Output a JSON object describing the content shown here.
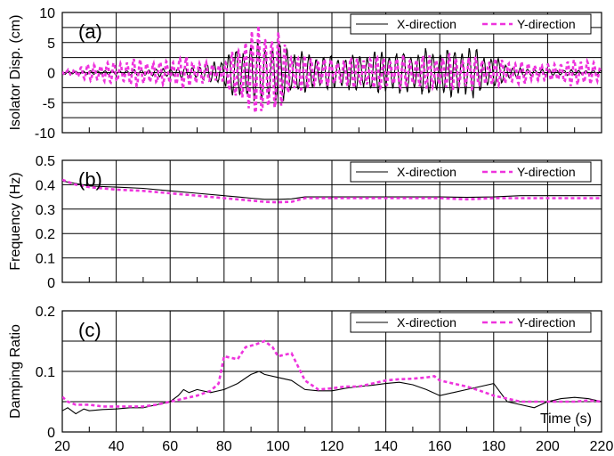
{
  "x_axis": {
    "min": 20,
    "max": 220,
    "major_step": 20,
    "minor_step": 10,
    "annotation": "Time (s)"
  },
  "legend": {
    "position": "top-right",
    "x_label": "X-direction",
    "y_label": "Y-direction"
  },
  "colors": {
    "x_series": "#000000",
    "y_series": "#ee33dd",
    "grid": "#000000"
  },
  "chart_data": [
    {
      "type": "line",
      "panel_label": "(a)",
      "ylabel": "Isolator Disp. (cm)",
      "ylim": [
        -10,
        10
      ],
      "yticks": [
        -10,
        -5,
        0,
        5,
        10
      ],
      "ygrid": [
        -10,
        -7.5,
        -5,
        -2.5,
        0,
        2.5,
        5,
        7.5,
        10
      ],
      "xlim": [
        20,
        220
      ],
      "grid": true,
      "series": [
        {
          "name": "X-direction",
          "style": "solid",
          "signal": "oscillation",
          "frequency_hz": 0.37,
          "envelope": [
            [
              20,
              0.3
            ],
            [
              40,
              0.4
            ],
            [
              60,
              0.8
            ],
            [
              70,
              1.2
            ],
            [
              75,
              2.0
            ],
            [
              80,
              3.0
            ],
            [
              85,
              4.5
            ],
            [
              90,
              5.5
            ],
            [
              95,
              6.0
            ],
            [
              100,
              5.5
            ],
            [
              105,
              4.5
            ],
            [
              110,
              3.5
            ],
            [
              120,
              3.0
            ],
            [
              130,
              3.5
            ],
            [
              140,
              4.0
            ],
            [
              150,
              4.0
            ],
            [
              160,
              4.2
            ],
            [
              165,
              4.5
            ],
            [
              170,
              5.0
            ],
            [
              175,
              4.0
            ],
            [
              180,
              3.0
            ],
            [
              185,
              1.5
            ],
            [
              190,
              0.8
            ],
            [
              200,
              0.6
            ],
            [
              210,
              0.5
            ],
            [
              220,
              0.4
            ]
          ]
        },
        {
          "name": "Y-direction",
          "style": "dashed",
          "signal": "oscillation",
          "frequency_hz": 0.41,
          "envelope": [
            [
              20,
              0.3
            ],
            [
              25,
              0.8
            ],
            [
              30,
              1.5
            ],
            [
              35,
              1.8
            ],
            [
              40,
              2.0
            ],
            [
              45,
              2.5
            ],
            [
              50,
              2.5
            ],
            [
              55,
              2.0
            ],
            [
              60,
              2.5
            ],
            [
              65,
              3.0
            ],
            [
              70,
              2.5
            ],
            [
              75,
              1.5
            ],
            [
              80,
              2.0
            ],
            [
              85,
              5.0
            ],
            [
              88,
              7.5
            ],
            [
              92,
              8.0
            ],
            [
              96,
              9.5
            ],
            [
              100,
              7.0
            ],
            [
              105,
              4.0
            ],
            [
              110,
              3.0
            ],
            [
              120,
              2.5
            ],
            [
              130,
              2.8
            ],
            [
              140,
              3.0
            ],
            [
              150,
              3.0
            ],
            [
              160,
              3.2
            ],
            [
              170,
              3.0
            ],
            [
              180,
              2.5
            ],
            [
              190,
              2.0
            ],
            [
              200,
              1.5
            ],
            [
              210,
              2.5
            ],
            [
              215,
              2.5
            ],
            [
              220,
              1.0
            ]
          ]
        }
      ]
    },
    {
      "type": "line",
      "panel_label": "(b)",
      "ylabel": "Frequency (Hz)",
      "ylim": [
        0,
        0.5
      ],
      "yticks": [
        0,
        0.1,
        0.2,
        0.3,
        0.4,
        0.5
      ],
      "ygrid": [
        0,
        0.1,
        0.2,
        0.3,
        0.4,
        0.5
      ],
      "xlim": [
        20,
        220
      ],
      "grid": true,
      "series": [
        {
          "name": "X-direction",
          "style": "solid",
          "points": [
            [
              20,
              0.415
            ],
            [
              25,
              0.405
            ],
            [
              30,
              0.395
            ],
            [
              40,
              0.39
            ],
            [
              50,
              0.385
            ],
            [
              60,
              0.375
            ],
            [
              70,
              0.365
            ],
            [
              80,
              0.355
            ],
            [
              85,
              0.35
            ],
            [
              90,
              0.345
            ],
            [
              95,
              0.34
            ],
            [
              100,
              0.34
            ],
            [
              105,
              0.342
            ],
            [
              110,
              0.35
            ],
            [
              120,
              0.35
            ],
            [
              130,
              0.35
            ],
            [
              140,
              0.35
            ],
            [
              150,
              0.35
            ],
            [
              160,
              0.35
            ],
            [
              170,
              0.348
            ],
            [
              180,
              0.35
            ],
            [
              190,
              0.355
            ],
            [
              200,
              0.355
            ],
            [
              210,
              0.355
            ],
            [
              220,
              0.355
            ]
          ]
        },
        {
          "name": "Y-direction",
          "style": "dashed",
          "points": [
            [
              20,
              0.42
            ],
            [
              25,
              0.4
            ],
            [
              30,
              0.39
            ],
            [
              40,
              0.38
            ],
            [
              50,
              0.375
            ],
            [
              60,
              0.365
            ],
            [
              70,
              0.355
            ],
            [
              80,
              0.345
            ],
            [
              85,
              0.34
            ],
            [
              90,
              0.335
            ],
            [
              95,
              0.33
            ],
            [
              100,
              0.328
            ],
            [
              105,
              0.33
            ],
            [
              110,
              0.345
            ],
            [
              120,
              0.345
            ],
            [
              130,
              0.345
            ],
            [
              140,
              0.345
            ],
            [
              150,
              0.345
            ],
            [
              160,
              0.345
            ],
            [
              170,
              0.34
            ],
            [
              180,
              0.345
            ],
            [
              190,
              0.345
            ],
            [
              200,
              0.345
            ],
            [
              210,
              0.345
            ],
            [
              220,
              0.345
            ]
          ]
        }
      ]
    },
    {
      "type": "line",
      "panel_label": "(c)",
      "ylabel": "Damping Ratio",
      "ylim": [
        0,
        0.2
      ],
      "yticks": [
        0,
        0.1,
        0.2
      ],
      "ygrid": [
        0,
        0.05,
        0.1,
        0.15,
        0.2
      ],
      "xlim": [
        20,
        220
      ],
      "grid": true,
      "series": [
        {
          "name": "X-direction",
          "style": "solid",
          "points": [
            [
              20,
              0.035
            ],
            [
              22,
              0.04
            ],
            [
              25,
              0.03
            ],
            [
              28,
              0.038
            ],
            [
              30,
              0.035
            ],
            [
              35,
              0.037
            ],
            [
              40,
              0.038
            ],
            [
              45,
              0.04
            ],
            [
              50,
              0.04
            ],
            [
              55,
              0.045
            ],
            [
              60,
              0.05
            ],
            [
              63,
              0.06
            ],
            [
              65,
              0.07
            ],
            [
              67,
              0.065
            ],
            [
              70,
              0.07
            ],
            [
              75,
              0.065
            ],
            [
              80,
              0.07
            ],
            [
              85,
              0.08
            ],
            [
              90,
              0.095
            ],
            [
              93,
              0.1
            ],
            [
              95,
              0.095
            ],
            [
              100,
              0.09
            ],
            [
              105,
              0.085
            ],
            [
              110,
              0.07
            ],
            [
              115,
              0.068
            ],
            [
              120,
              0.068
            ],
            [
              125,
              0.072
            ],
            [
              130,
              0.075
            ],
            [
              135,
              0.077
            ],
            [
              140,
              0.08
            ],
            [
              145,
              0.082
            ],
            [
              150,
              0.078
            ],
            [
              155,
              0.07
            ],
            [
              160,
              0.06
            ],
            [
              165,
              0.065
            ],
            [
              170,
              0.07
            ],
            [
              175,
              0.075
            ],
            [
              180,
              0.08
            ],
            [
              185,
              0.05
            ],
            [
              190,
              0.045
            ],
            [
              195,
              0.04
            ],
            [
              200,
              0.05
            ],
            [
              205,
              0.055
            ],
            [
              210,
              0.057
            ],
            [
              215,
              0.055
            ],
            [
              220,
              0.05
            ]
          ]
        },
        {
          "name": "Y-direction",
          "style": "dashed",
          "points": [
            [
              20,
              0.058
            ],
            [
              22,
              0.05
            ],
            [
              25,
              0.045
            ],
            [
              30,
              0.045
            ],
            [
              35,
              0.042
            ],
            [
              40,
              0.042
            ],
            [
              45,
              0.042
            ],
            [
              50,
              0.042
            ],
            [
              55,
              0.045
            ],
            [
              60,
              0.05
            ],
            [
              65,
              0.055
            ],
            [
              70,
              0.06
            ],
            [
              75,
              0.068
            ],
            [
              78,
              0.08
            ],
            [
              80,
              0.125
            ],
            [
              85,
              0.12
            ],
            [
              88,
              0.14
            ],
            [
              92,
              0.145
            ],
            [
              95,
              0.15
            ],
            [
              98,
              0.14
            ],
            [
              100,
              0.125
            ],
            [
              105,
              0.13
            ],
            [
              110,
              0.085
            ],
            [
              115,
              0.07
            ],
            [
              120,
              0.072
            ],
            [
              125,
              0.075
            ],
            [
              130,
              0.075
            ],
            [
              135,
              0.08
            ],
            [
              140,
              0.085
            ],
            [
              145,
              0.087
            ],
            [
              150,
              0.088
            ],
            [
              155,
              0.09
            ],
            [
              158,
              0.092
            ],
            [
              160,
              0.085
            ],
            [
              165,
              0.08
            ],
            [
              170,
              0.075
            ],
            [
              175,
              0.068
            ],
            [
              180,
              0.06
            ],
            [
              185,
              0.055
            ],
            [
              190,
              0.05
            ],
            [
              195,
              0.05
            ],
            [
              200,
              0.05
            ],
            [
              205,
              0.05
            ],
            [
              210,
              0.05
            ],
            [
              215,
              0.052
            ],
            [
              220,
              0.05
            ]
          ]
        }
      ]
    }
  ]
}
